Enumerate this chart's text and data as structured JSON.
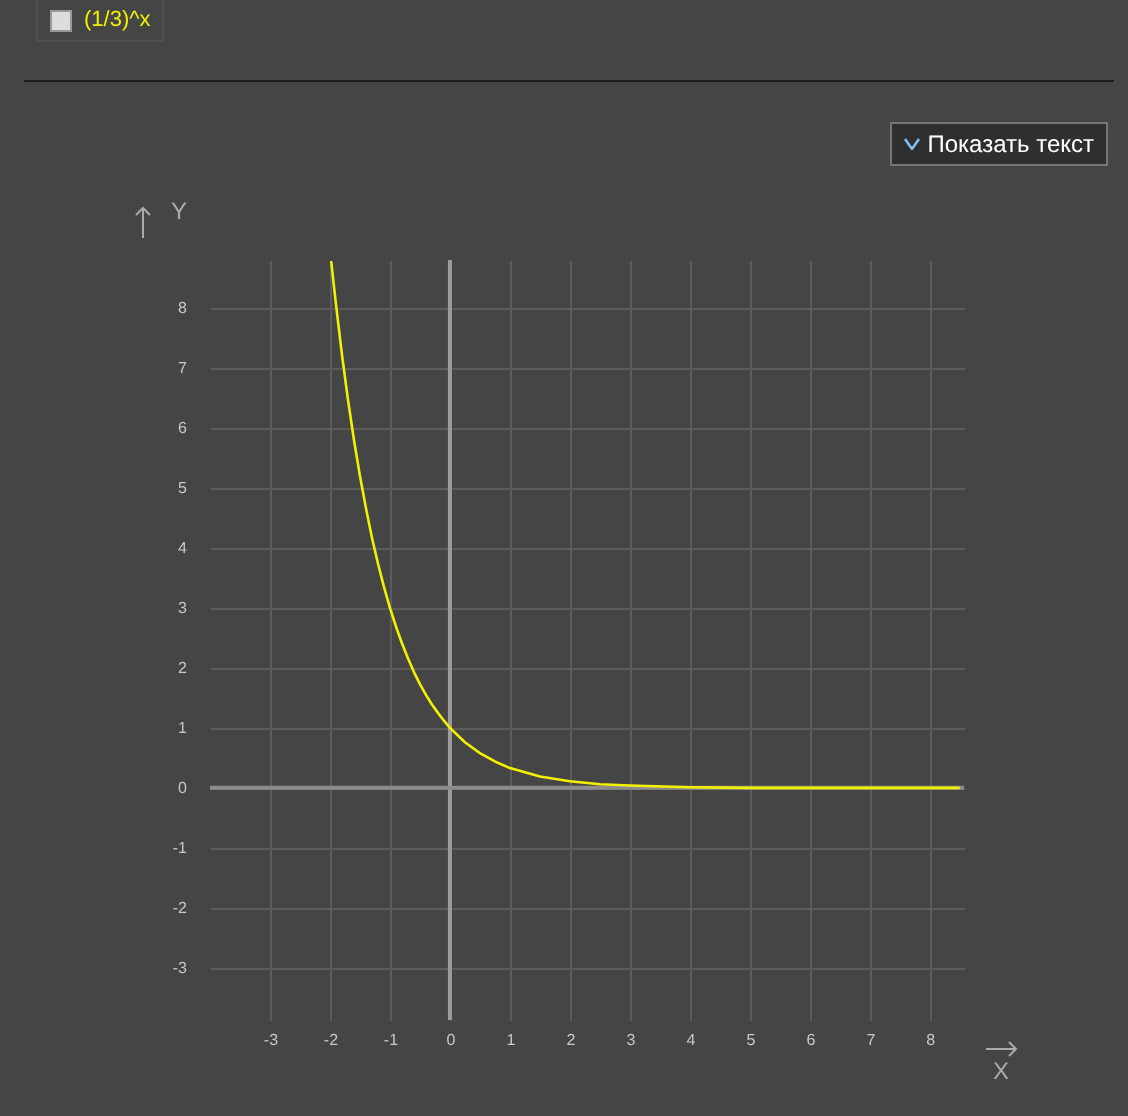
{
  "chart_data": {
    "type": "line",
    "xlabel": "X",
    "ylabel": "Y",
    "xlim": [
      -4,
      8.57
    ],
    "ylim": [
      -3.87,
      8.8
    ],
    "xticks": [
      -3,
      -2,
      -1,
      0,
      1,
      2,
      3,
      4,
      5,
      6,
      7,
      8
    ],
    "yticks": [
      -3,
      -2,
      -1,
      0,
      1,
      2,
      3,
      4,
      5,
      6,
      7,
      8
    ],
    "grid": true,
    "legend": "top left",
    "marker": "none",
    "line_style": "solid",
    "ref_lines": [
      {
        "axis": "x",
        "value": 0,
        "color": "#9c9c9c"
      },
      {
        "axis": "y",
        "value": 0,
        "color": "#8c8c8c"
      }
    ],
    "annotations": [
      "Показать текст"
    ],
    "series": [
      {
        "name": "(1/3)^x",
        "color": "#f2f200",
        "x": [
          -1.98,
          -1.9,
          -1.8,
          -1.7,
          -1.6,
          -1.5,
          -1.4,
          -1.3,
          -1.2,
          -1.1,
          -1,
          -0.9,
          -0.8,
          -0.7,
          -0.6,
          -0.5,
          -0.4,
          -0.3,
          -0.2,
          -0.1,
          0,
          0.25,
          0.5,
          0.75,
          1,
          1.5,
          2,
          2.5,
          3,
          4,
          5,
          6,
          8.5
        ],
        "values": [
          8.78,
          8.06,
          7.22,
          6.47,
          5.8,
          5.2,
          4.66,
          4.17,
          3.74,
          3.35,
          3,
          2.69,
          2.41,
          2.16,
          1.93,
          1.73,
          1.55,
          1.39,
          1.25,
          1.12,
          1,
          0.76,
          0.58,
          0.44,
          0.33,
          0.19,
          0.11,
          0.06,
          0.04,
          0.01,
          0,
          0,
          0
        ]
      }
    ]
  }
}
